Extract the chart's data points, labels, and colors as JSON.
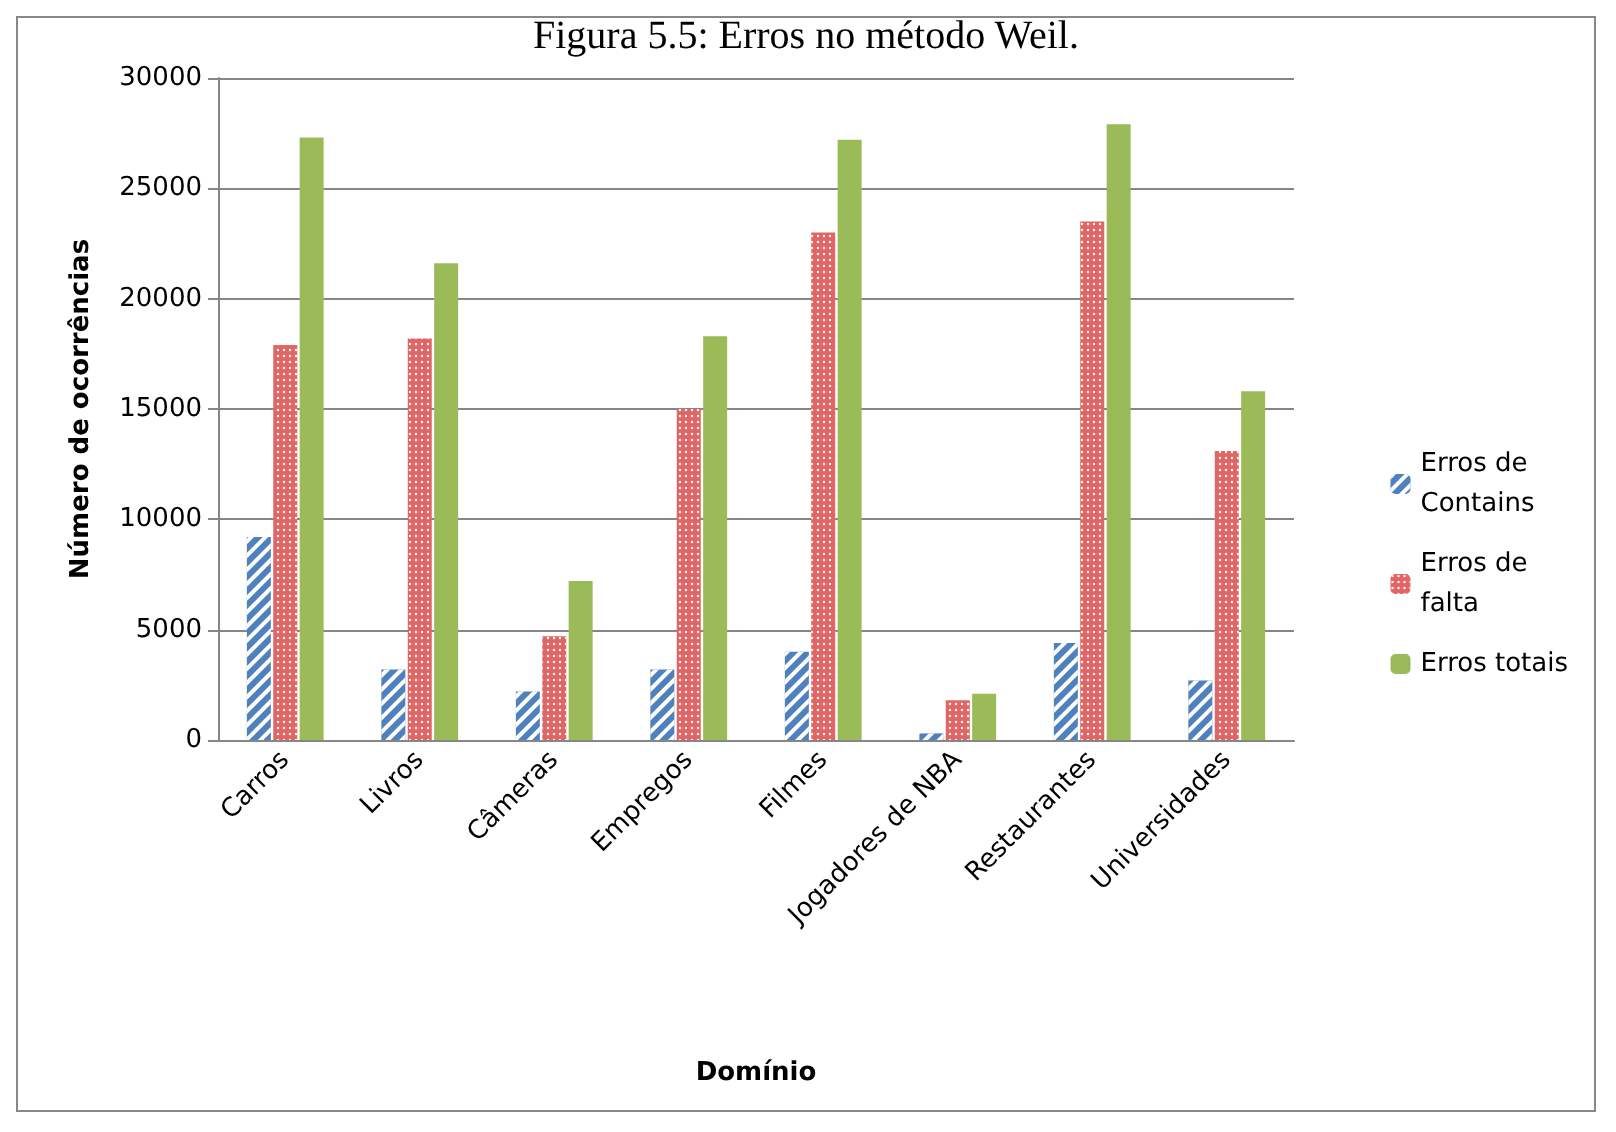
{
  "chart_data": {
    "type": "bar",
    "title": "Figura 5.5: Erros no método Weil.",
    "xlabel": "Domínio",
    "ylabel": "Número de ocorrências",
    "categories": [
      "Carros",
      "Livros",
      "Câmeras",
      "Empregos",
      "Filmes",
      "Jogadores de NBA",
      "Restaurantes",
      "Universidades"
    ],
    "series": [
      {
        "name": "Erros de\nContains",
        "color": "#4f81bd",
        "values": [
          9200,
          3200,
          2200,
          3200,
          4000,
          300,
          4400,
          2700
        ]
      },
      {
        "name": "Erros de\nfalta",
        "color": "#e06666",
        "values": [
          17900,
          18200,
          4700,
          15000,
          23000,
          1800,
          23500,
          13100
        ]
      },
      {
        "name": "Erros totais",
        "color": "#9bbb59",
        "values": [
          27300,
          21600,
          7200,
          18300,
          27200,
          2100,
          27900,
          15800
        ]
      }
    ],
    "ylim": [
      0,
      30000
    ],
    "yticks": [
      0,
      5000,
      10000,
      15000,
      20000,
      25000,
      30000
    ],
    "grid": "y",
    "legend": "right"
  }
}
